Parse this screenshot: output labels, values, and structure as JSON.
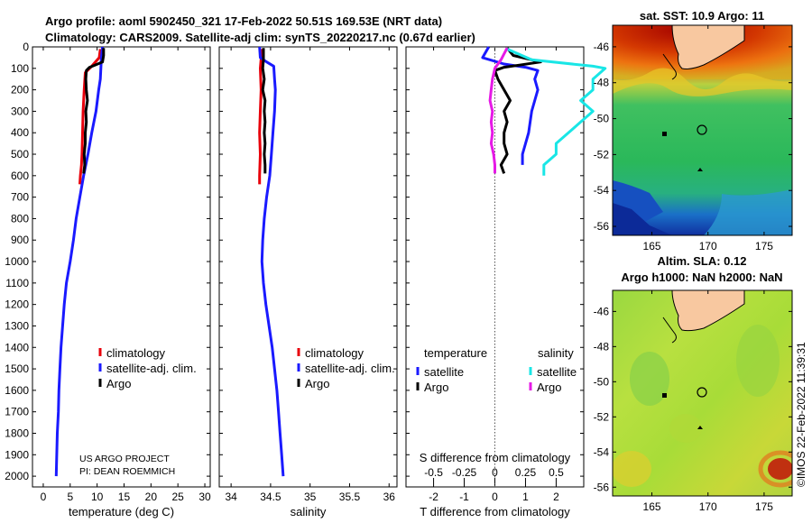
{
  "header": {
    "line1": "Argo profile: aoml 5902450_321 17-Feb-2022 50.51S 169.53E (NRT data)",
    "line2": "Climatology: CARS2009. Satellite-adj clim: synTS_20220217.nc (0.67d earlier)"
  },
  "credit": {
    "line1": "US ARGO PROJECT",
    "line2": "PI: DEAN ROEMMICH"
  },
  "copyright": "©IMOS 22-Feb-2022 11:39:31",
  "colors": {
    "climatology": "#e8000b",
    "satellite": "#1a1aff",
    "argo": "#000000",
    "sal_sat": "#19e6e6",
    "sal_argo": "#e619e6"
  },
  "chart_data": [
    {
      "type": "line",
      "panel": "temperature",
      "xlabel": "temperature (deg C)",
      "xlim": [
        -2,
        31
      ],
      "xticks": [
        0,
        5,
        10,
        15,
        20,
        25,
        30
      ],
      "ylim": [
        0,
        2050
      ],
      "yticks": [
        0,
        100,
        200,
        300,
        400,
        500,
        600,
        700,
        800,
        900,
        1000,
        1100,
        1200,
        1300,
        1400,
        1500,
        1600,
        1700,
        1800,
        1900,
        2000
      ],
      "legend": [
        "climatology",
        "satellite-adj. clim.",
        "Argo"
      ],
      "series": [
        {
          "name": "climatology",
          "color": "#e8000b",
          "points": [
            [
              10.6,
              10
            ],
            [
              10.4,
              50
            ],
            [
              9.0,
              90
            ],
            [
              7.8,
              120
            ],
            [
              7.6,
              200
            ],
            [
              7.4,
              300
            ],
            [
              7.3,
              400
            ],
            [
              7.2,
              500
            ],
            [
              7.1,
              550
            ],
            [
              6.9,
              600
            ],
            [
              6.8,
              640
            ]
          ]
        },
        {
          "name": "satellite-adj. clim.",
          "color": "#1a1aff",
          "points": [
            [
              11.0,
              0
            ],
            [
              10.8,
              50
            ],
            [
              10.7,
              100
            ],
            [
              10.6,
              150
            ],
            [
              10.3,
              200
            ],
            [
              9.8,
              300
            ],
            [
              9.0,
              400
            ],
            [
              8.3,
              500
            ],
            [
              7.5,
              600
            ],
            [
              6.8,
              700
            ],
            [
              6.1,
              800
            ],
            [
              5.6,
              900
            ],
            [
              5.0,
              1000
            ],
            [
              4.3,
              1100
            ],
            [
              3.9,
              1200
            ],
            [
              3.6,
              1300
            ],
            [
              3.3,
              1400
            ],
            [
              3.1,
              1500
            ],
            [
              2.9,
              1600
            ],
            [
              2.8,
              1700
            ],
            [
              2.6,
              1800
            ],
            [
              2.5,
              1900
            ],
            [
              2.4,
              2000
            ]
          ]
        },
        {
          "name": "Argo",
          "color": "#000000",
          "points": [
            [
              11.2,
              5
            ],
            [
              11.2,
              40
            ],
            [
              11.0,
              70
            ],
            [
              9.6,
              85
            ],
            [
              8.6,
              95
            ],
            [
              8.0,
              110
            ],
            [
              7.9,
              150
            ],
            [
              8.0,
              200
            ],
            [
              8.2,
              250
            ],
            [
              7.9,
              300
            ],
            [
              8.0,
              350
            ],
            [
              7.8,
              400
            ],
            [
              7.8,
              450
            ],
            [
              7.6,
              500
            ],
            [
              7.7,
              550
            ],
            [
              7.5,
              590
            ]
          ]
        }
      ]
    },
    {
      "type": "line",
      "panel": "salinity",
      "xlabel": "salinity",
      "xlim": [
        33.85,
        36.1
      ],
      "xticks": [
        34,
        34.5,
        35,
        35.5,
        36
      ],
      "xtick_labels": [
        "34",
        "34.5",
        "35",
        "35.5",
        "36"
      ],
      "ylim": [
        0,
        2050
      ],
      "legend": [
        "climatology",
        "satellite-adj. clim.",
        "Argo"
      ],
      "series": [
        {
          "name": "climatology",
          "color": "#e8000b",
          "points": [
            [
              34.39,
              10
            ],
            [
              34.37,
              100
            ],
            [
              34.38,
              200
            ],
            [
              34.37,
              300
            ],
            [
              34.36,
              400
            ],
            [
              34.37,
              500
            ],
            [
              34.36,
              600
            ],
            [
              34.36,
              640
            ]
          ]
        },
        {
          "name": "satellite-adj. clim.",
          "color": "#1a1aff",
          "points": [
            [
              34.36,
              0
            ],
            [
              34.37,
              50
            ],
            [
              34.45,
              70
            ],
            [
              34.54,
              90
            ],
            [
              34.55,
              150
            ],
            [
              34.56,
              200
            ],
            [
              34.55,
              300
            ],
            [
              34.53,
              400
            ],
            [
              34.51,
              500
            ],
            [
              34.49,
              600
            ],
            [
              34.45,
              700
            ],
            [
              34.42,
              800
            ],
            [
              34.4,
              900
            ],
            [
              34.39,
              1000
            ],
            [
              34.41,
              1100
            ],
            [
              34.44,
              1200
            ],
            [
              34.48,
              1300
            ],
            [
              34.52,
              1400
            ],
            [
              34.55,
              1500
            ],
            [
              34.58,
              1600
            ],
            [
              34.6,
              1700
            ],
            [
              34.62,
              1800
            ],
            [
              34.64,
              1900
            ],
            [
              34.66,
              2000
            ]
          ]
        },
        {
          "name": "Argo",
          "color": "#000000",
          "points": [
            [
              34.41,
              5
            ],
            [
              34.41,
              60
            ],
            [
              34.4,
              100
            ],
            [
              34.42,
              150
            ],
            [
              34.4,
              200
            ],
            [
              34.43,
              250
            ],
            [
              34.42,
              300
            ],
            [
              34.43,
              350
            ],
            [
              34.42,
              400
            ],
            [
              34.43,
              450
            ],
            [
              34.42,
              500
            ],
            [
              34.43,
              550
            ],
            [
              34.43,
              590
            ]
          ]
        }
      ]
    },
    {
      "type": "line",
      "panel": "difference",
      "xlabel": "T difference from climatology",
      "xlabel_top": "S difference from climatology",
      "xlim": [
        -2.9,
        2.9
      ],
      "xticks": [
        -2,
        -1,
        0,
        1,
        2
      ],
      "sticks": [
        -0.5,
        -0.25,
        0,
        0.25,
        0.5
      ],
      "stick_labels": [
        "-0.5",
        "-0.25",
        "0",
        "0.25",
        "0.5"
      ],
      "ylim": [
        0,
        2050
      ],
      "legend_titles": [
        "temperature",
        "salinity"
      ],
      "legend_temperature": [
        "satellite",
        "Argo"
      ],
      "legend_salinity": [
        "satellite",
        "Argo"
      ],
      "series": [
        {
          "name": "temperature satellite",
          "color": "#1a1aff",
          "points": [
            [
              -0.2,
              0
            ],
            [
              -0.4,
              50
            ],
            [
              0.3,
              80
            ],
            [
              1.0,
              95
            ],
            [
              1.4,
              110
            ],
            [
              1.3,
              150
            ],
            [
              1.4,
              200
            ],
            [
              1.3,
              250
            ],
            [
              1.2,
              300
            ],
            [
              1.1,
              400
            ],
            [
              1.0,
              450
            ],
            [
              0.9,
              500
            ],
            [
              0.9,
              550
            ]
          ]
        },
        {
          "name": "temperature Argo",
          "color": "#000000",
          "points": [
            [
              0.4,
              5
            ],
            [
              0.6,
              40
            ],
            [
              1.5,
              70
            ],
            [
              0.8,
              85
            ],
            [
              0.3,
              95
            ],
            [
              0.0,
              110
            ],
            [
              0.1,
              150
            ],
            [
              0.3,
              200
            ],
            [
              0.5,
              250
            ],
            [
              0.3,
              300
            ],
            [
              0.4,
              350
            ],
            [
              0.3,
              400
            ],
            [
              0.3,
              450
            ],
            [
              0.4,
              500
            ],
            [
              0.2,
              550
            ],
            [
              0.3,
              590
            ]
          ]
        },
        {
          "name": "salinity satellite",
          "color": "#19e6e6",
          "points": [
            [
              0.1,
              10
            ],
            [
              0.3,
              60
            ],
            [
              0.8,
              90
            ],
            [
              0.9,
              100
            ],
            [
              0.8,
              150
            ],
            [
              0.8,
              200
            ],
            [
              0.7,
              250
            ],
            [
              0.8,
              300
            ],
            [
              0.7,
              350
            ],
            [
              0.6,
              400
            ],
            [
              0.5,
              450
            ],
            [
              0.5,
              500
            ],
            [
              0.4,
              550
            ],
            [
              0.4,
              600
            ]
          ]
        },
        {
          "name": "salinity Argo",
          "color": "#e619e6",
          "points": [
            [
              0.1,
              5
            ],
            [
              0.05,
              60
            ],
            [
              0.0,
              100
            ],
            [
              -0.02,
              150
            ],
            [
              -0.03,
              200
            ],
            [
              -0.04,
              250
            ],
            [
              -0.02,
              300
            ],
            [
              -0.03,
              350
            ],
            [
              -0.02,
              400
            ],
            [
              -0.03,
              450
            ],
            [
              -0.01,
              500
            ],
            [
              0.0,
              550
            ],
            [
              0.0,
              590
            ]
          ]
        }
      ]
    },
    {
      "type": "heatmap",
      "panel": "sst-map",
      "title": "sat. SST: 10.9 Argo: 11",
      "xticks": [
        165,
        170,
        175
      ],
      "yticks": [
        -46,
        -48,
        -50,
        -52,
        -54,
        -56
      ],
      "xlim": [
        161.5,
        177.5
      ],
      "ylim": [
        -56.5,
        -44.8
      ],
      "float_position": [
        169.53,
        -50.51
      ]
    },
    {
      "type": "heatmap",
      "panel": "sla-map",
      "title_line1": "Altim. SLA: 0.12",
      "title_line2": "Argo h1000: NaN h2000: NaN",
      "xticks": [
        165,
        170,
        175
      ],
      "yticks": [
        -46,
        -48,
        -50,
        -52,
        -54,
        -56
      ],
      "xlim": [
        161.5,
        177.5
      ],
      "ylim": [
        -56.5,
        -44.8
      ],
      "float_position": [
        169.53,
        -50.51
      ]
    }
  ]
}
